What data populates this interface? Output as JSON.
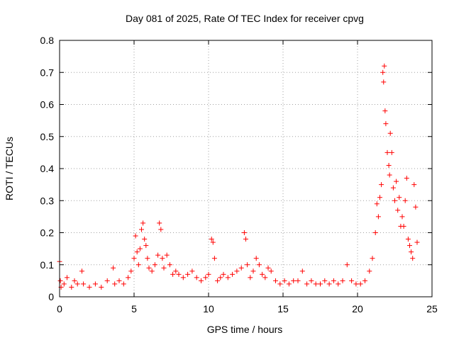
{
  "chart_data": {
    "type": "scatter",
    "title": "Day 081 of 2025, Rate Of TEC Index for receiver cpvg",
    "xlabel": "GPS time / hours",
    "ylabel": "ROTI / TECUs",
    "xlim": [
      0,
      25
    ],
    "ylim": [
      0,
      0.8
    ],
    "xticks": [
      0,
      5,
      10,
      15,
      20,
      25
    ],
    "xtick_labels": [
      "0",
      "5",
      "10",
      "15",
      "20",
      "25"
    ],
    "yticks": [
      0,
      0.1,
      0.2,
      0.3,
      0.4,
      0.5,
      0.6,
      0.7,
      0.8
    ],
    "ytick_labels": [
      "0",
      "0.1",
      "0.2",
      "0.3",
      "0.4",
      "0.5",
      "0.6",
      "0.7",
      "0.8"
    ],
    "grid": true,
    "marker": "plus",
    "marker_color": "#ff0000",
    "series": [
      {
        "x": [
          0.0,
          0.05,
          0.1,
          0.3,
          0.5,
          0.8,
          1.0,
          1.2,
          1.5,
          1.6,
          2.0,
          2.4,
          2.8,
          3.2,
          3.6,
          3.7,
          4.0,
          4.3,
          4.6,
          4.8,
          5.0,
          5.1,
          5.2,
          5.3,
          5.4,
          5.5,
          5.6,
          5.7,
          5.8,
          5.9,
          6.0,
          6.2,
          6.4,
          6.6,
          6.7,
          6.8,
          6.9,
          7.0,
          7.2,
          7.4,
          7.6,
          7.8,
          8.0,
          8.3,
          8.6,
          8.9,
          9.2,
          9.5,
          9.8,
          10.0,
          10.2,
          10.3,
          10.4,
          10.6,
          10.8,
          11.0,
          11.3,
          11.6,
          11.9,
          12.2,
          12.4,
          12.5,
          12.6,
          12.8,
          13.0,
          13.2,
          13.4,
          13.6,
          13.8,
          14.0,
          14.2,
          14.5,
          14.8,
          15.1,
          15.4,
          15.7,
          16.0,
          16.3,
          16.6,
          16.9,
          17.2,
          17.5,
          17.8,
          18.1,
          18.4,
          18.7,
          19.0,
          19.3,
          19.6,
          19.9,
          20.2,
          20.5,
          20.8,
          21.0,
          21.2,
          21.3,
          21.4,
          21.5,
          21.6,
          21.7,
          21.75,
          21.8,
          21.85,
          21.9,
          22.0,
          22.1,
          22.15,
          22.2,
          22.3,
          22.4,
          22.5,
          22.6,
          22.7,
          22.8,
          22.9,
          23.0,
          23.1,
          23.2,
          23.3,
          23.4,
          23.5,
          23.6,
          23.7,
          23.8,
          23.9,
          24.0
        ],
        "y": [
          0.11,
          0.05,
          0.03,
          0.04,
          0.06,
          0.03,
          0.05,
          0.04,
          0.08,
          0.04,
          0.03,
          0.04,
          0.03,
          0.05,
          0.09,
          0.04,
          0.05,
          0.04,
          0.06,
          0.08,
          0.12,
          0.19,
          0.14,
          0.1,
          0.15,
          0.21,
          0.23,
          0.18,
          0.16,
          0.12,
          0.09,
          0.08,
          0.1,
          0.13,
          0.23,
          0.21,
          0.12,
          0.09,
          0.13,
          0.1,
          0.07,
          0.08,
          0.07,
          0.06,
          0.07,
          0.08,
          0.06,
          0.05,
          0.06,
          0.07,
          0.18,
          0.17,
          0.12,
          0.05,
          0.06,
          0.07,
          0.06,
          0.07,
          0.08,
          0.09,
          0.2,
          0.18,
          0.1,
          0.06,
          0.08,
          0.12,
          0.1,
          0.07,
          0.06,
          0.09,
          0.08,
          0.05,
          0.04,
          0.05,
          0.04,
          0.05,
          0.05,
          0.08,
          0.04,
          0.05,
          0.04,
          0.04,
          0.05,
          0.04,
          0.05,
          0.04,
          0.05,
          0.1,
          0.05,
          0.04,
          0.04,
          0.05,
          0.08,
          0.12,
          0.2,
          0.29,
          0.25,
          0.31,
          0.35,
          0.7,
          0.67,
          0.72,
          0.58,
          0.54,
          0.45,
          0.41,
          0.38,
          0.51,
          0.45,
          0.34,
          0.3,
          0.36,
          0.27,
          0.31,
          0.22,
          0.25,
          0.22,
          0.3,
          0.37,
          0.18,
          0.16,
          0.14,
          0.12,
          0.35,
          0.28,
          0.17
        ]
      }
    ]
  }
}
